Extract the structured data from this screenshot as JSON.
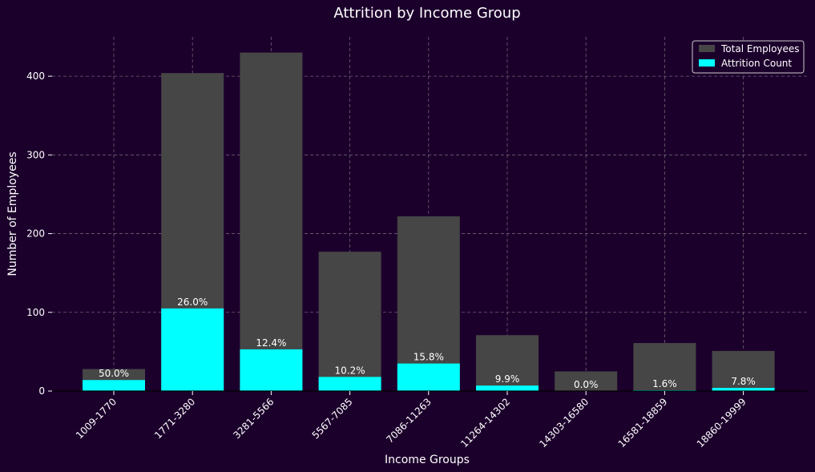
{
  "chart_data": {
    "type": "bar",
    "title": "Attrition by Income Group",
    "xlabel": "Income Groups",
    "ylabel": "Number of Employees",
    "ylim": [
      0,
      450
    ],
    "yticks": [
      0,
      100,
      200,
      300,
      400
    ],
    "grid": true,
    "legend_position": "top-right",
    "categories": [
      "1009-1770",
      "1771-3280",
      "3281-5566",
      "5567-7085",
      "7086-11263",
      "11264-14302",
      "14303-16580",
      "16581-18859",
      "18860-19999"
    ],
    "series": [
      {
        "name": "Total Employees",
        "color": "#464646",
        "values": [
          28,
          404,
          430,
          177,
          222,
          71,
          25,
          61,
          51
        ]
      },
      {
        "name": "Attrition Count",
        "color": "#00ffff",
        "values": [
          14,
          105,
          53,
          18,
          35,
          7,
          0,
          1,
          4
        ]
      }
    ],
    "bar_labels": [
      "50.0%",
      "26.0%",
      "12.4%",
      "10.2%",
      "15.8%",
      "9.9%",
      "0.0%",
      "1.6%",
      "7.8%"
    ]
  },
  "colors": {
    "background": "#1c002c",
    "grid": "#8c8c8c",
    "text": "#ffffff"
  }
}
